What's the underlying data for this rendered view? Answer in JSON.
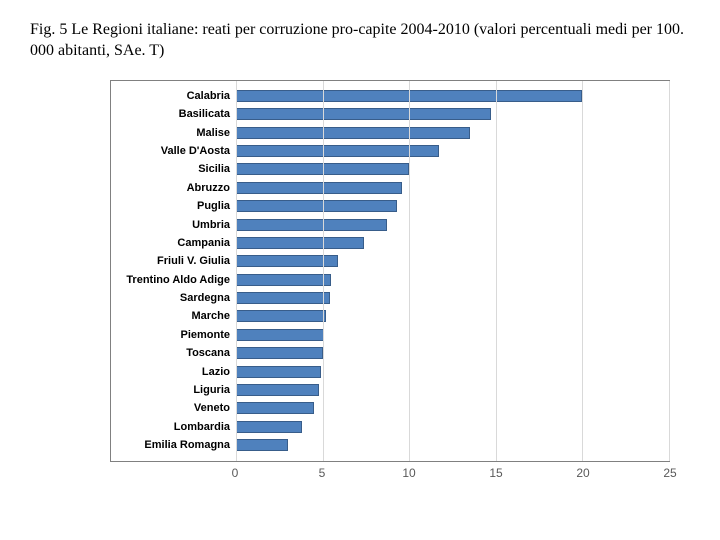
{
  "caption": "Fig. 5 Le Regioni italiane: reati per corruzione pro-capite 2004-2010 (valori percentuali medi per 100. 000 abitanti, SAe. T)",
  "chart": {
    "type": "bar-horizontal",
    "xlim": [
      0,
      25
    ],
    "xtick_step": 5,
    "xticks": [
      0,
      5,
      10,
      15,
      20,
      25
    ],
    "grid_color": "#d9d9d9",
    "border_color": "#808080",
    "background_color": "#ffffff",
    "bar_fill": "#4f81bd",
    "bar_border": "#385d8a",
    "label_font": "Arial",
    "label_fontsize": 11,
    "label_fontweight": "bold",
    "tick_fontsize": 12,
    "tick_color": "#595959",
    "categories": [
      "Calabria",
      "Basilicata",
      "Malise",
      "Valle D'Aosta",
      "Sicilia",
      "Abruzzo",
      "Puglia",
      "Umbria",
      "Campania",
      "Friuli V. Giulia",
      "Trentino Aldo Adige",
      "Sardegna",
      "Marche",
      "Piemonte",
      "Toscana",
      "Lazio",
      "Liguria",
      "Veneto",
      "Lombardia",
      "Emilia Romagna"
    ],
    "values": [
      20.0,
      14.7,
      13.5,
      11.7,
      10.0,
      9.6,
      9.3,
      8.7,
      7.4,
      5.9,
      5.5,
      5.4,
      5.2,
      5.1,
      5.0,
      4.9,
      4.8,
      4.5,
      3.8,
      3.0
    ]
  }
}
